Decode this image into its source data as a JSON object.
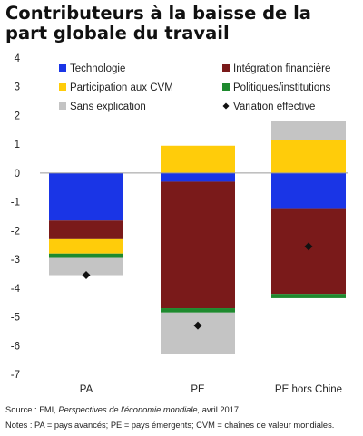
{
  "title_lines": [
    "Contributeurs à la baisse de la",
    "part globale du travail"
  ],
  "source_prefix": "Source : FMI, ",
  "source_italic": "Perspectives de l'économie mondiale,",
  "source_suffix": " avril 2017.",
  "notes": "Notes : PA = pays avancés; PE = pays émergents; CVM = chaînes de valeur mondiales.",
  "chart_data": {
    "type": "bar",
    "stacked": true,
    "categories": [
      "PA",
      "PE",
      "PE hors Chine"
    ],
    "ylim": [
      -7,
      4
    ],
    "yticks": [
      4,
      3,
      2,
      1,
      0,
      -1,
      -2,
      -3,
      -4,
      -5,
      -6,
      -7
    ],
    "grid": false,
    "legend_position": "top",
    "series": [
      {
        "name": "Technologie",
        "color": "#1a35e6",
        "values": [
          -1.65,
          -0.3,
          -1.25
        ]
      },
      {
        "name": "Intégration financière",
        "color": "#7a1a1a",
        "values": [
          -0.65,
          -4.4,
          -2.95
        ]
      },
      {
        "name": "Participation aux CVM",
        "color": "#ffcc0a",
        "values": [
          -0.5,
          0.95,
          1.15
        ]
      },
      {
        "name": "Politiques/institutions",
        "color": "#1e8a2e",
        "values": [
          -0.15,
          -0.15,
          -0.15
        ]
      },
      {
        "name": "Sans explication",
        "color": "#c4c4c4",
        "values": [
          -0.6,
          -1.45,
          0.65
        ]
      }
    ],
    "marker_series": {
      "name": "Variation effective",
      "symbol": "diamond",
      "color": "#111111",
      "values": [
        -3.55,
        -5.3,
        -2.55
      ]
    }
  }
}
